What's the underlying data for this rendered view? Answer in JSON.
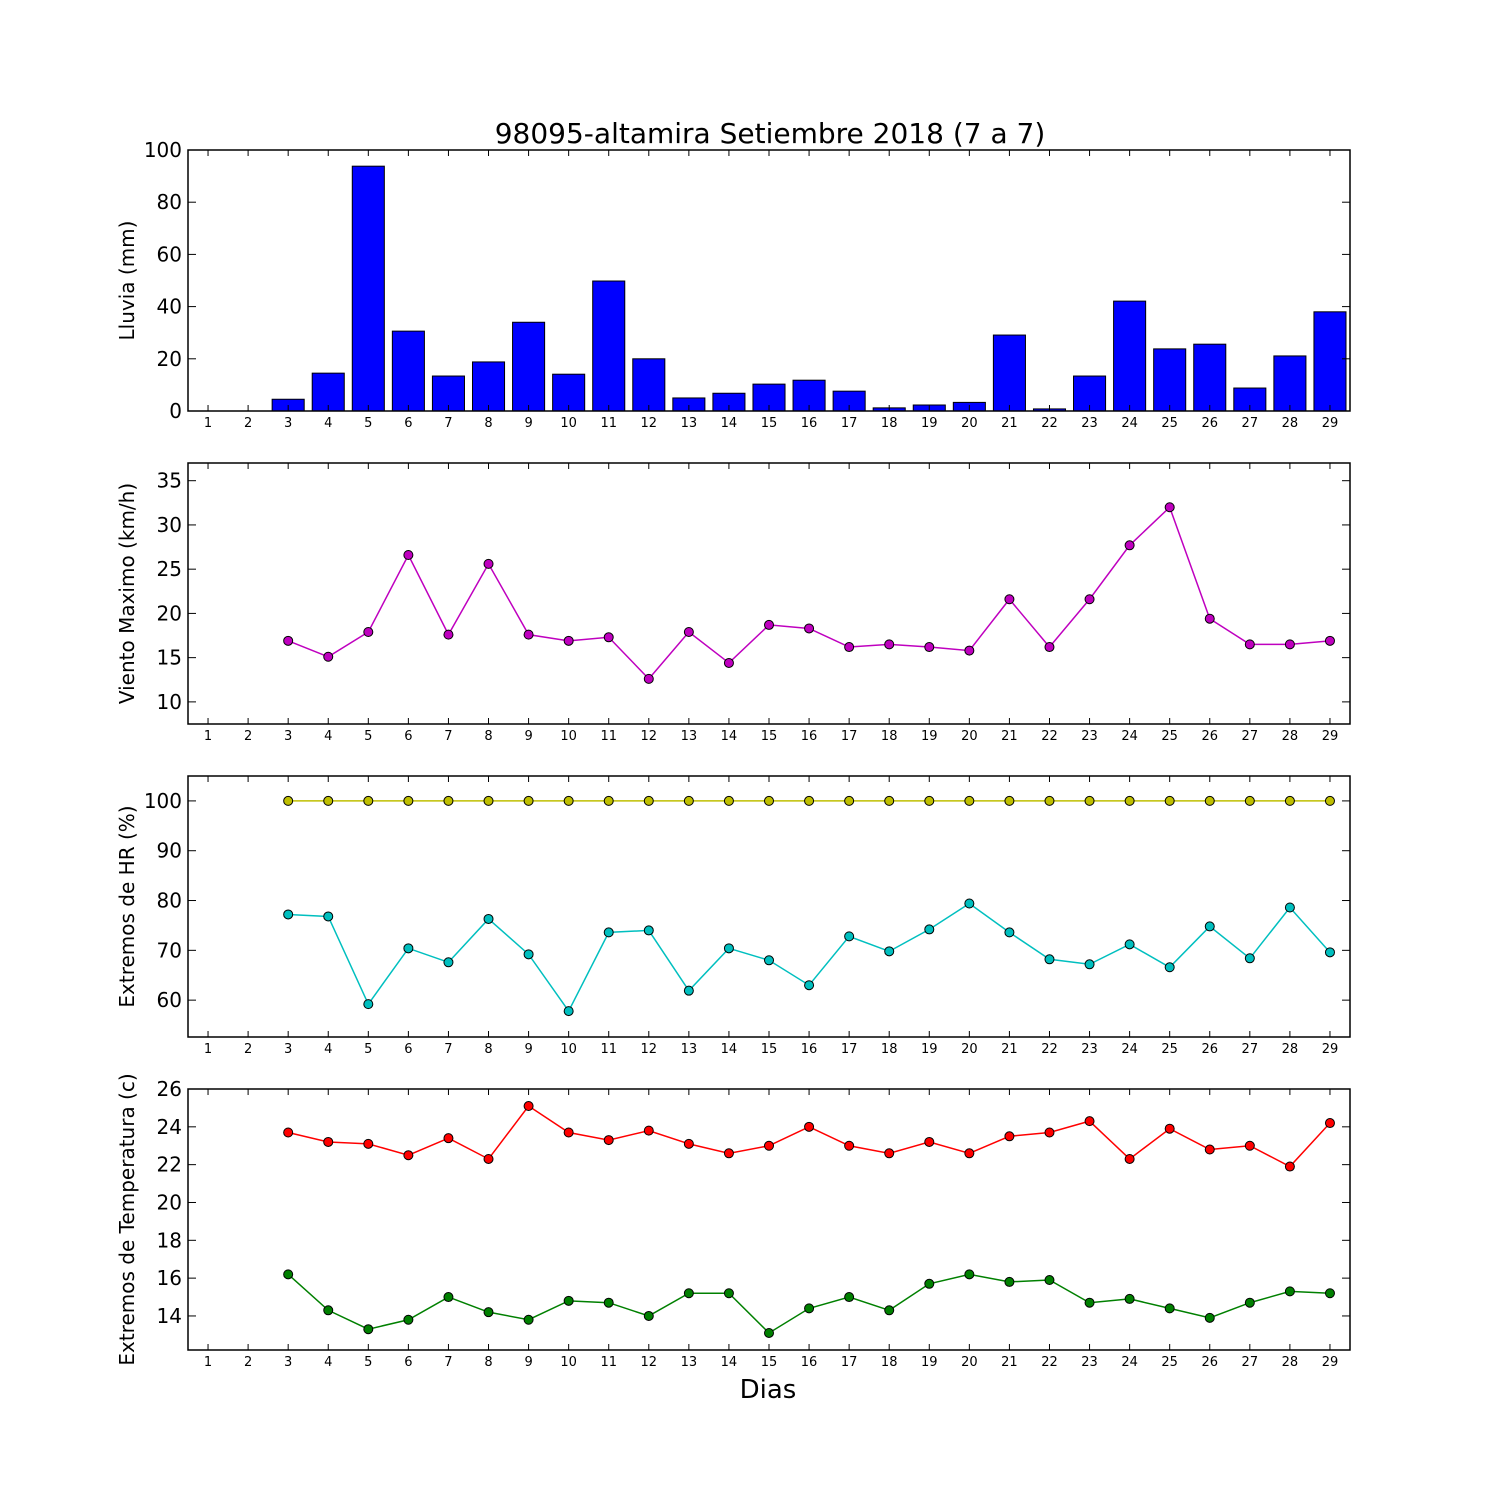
{
  "figure": {
    "title": "98095-altamira Setiembre 2018  (7 a 7)",
    "xlabel": "Dias",
    "colors": {
      "rain": "#0000ff",
      "wind": "#bf00bf",
      "hr_max": "#bfbf00",
      "hr_min": "#00bfbf",
      "t_max": "#ff0000",
      "t_min": "#008000"
    }
  },
  "chart_data": [
    {
      "type": "bar",
      "ylabel": "Lluvia (mm)",
      "ylim": [
        0,
        100
      ],
      "yticks": [
        0,
        20,
        40,
        60,
        80,
        100
      ],
      "xlim": [
        0.5,
        29.5
      ],
      "categories": [
        1,
        2,
        3,
        4,
        5,
        6,
        7,
        8,
        9,
        10,
        11,
        12,
        13,
        14,
        15,
        16,
        17,
        18,
        19,
        20,
        21,
        22,
        23,
        24,
        25,
        26,
        27,
        28,
        29
      ],
      "series": [
        {
          "values": [
            null,
            null,
            4.5,
            14.5,
            93.8,
            30.6,
            13.4,
            18.8,
            34.0,
            14.1,
            49.8,
            20.0,
            5.0,
            6.8,
            10.3,
            11.8,
            7.6,
            1.2,
            2.3,
            3.3,
            29.1,
            0.8,
            13.4,
            42.1,
            23.8,
            25.6,
            8.8,
            21.1,
            38.0
          ]
        }
      ],
      "grid": false
    },
    {
      "type": "line",
      "ylabel": "Viento Maximo (km/h)",
      "ylim": [
        7.5,
        37
      ],
      "yticks": [
        10,
        15,
        20,
        25,
        30,
        35
      ],
      "xlim": [
        0.5,
        29.5
      ],
      "x": [
        1,
        2,
        3,
        4,
        5,
        6,
        7,
        8,
        9,
        10,
        11,
        12,
        13,
        14,
        15,
        16,
        17,
        18,
        19,
        20,
        21,
        22,
        23,
        24,
        25,
        26,
        27,
        28,
        29
      ],
      "series": [
        {
          "values": [
            null,
            null,
            16.9,
            15.1,
            17.9,
            26.6,
            17.6,
            25.6,
            17.6,
            16.9,
            17.3,
            12.6,
            17.9,
            14.4,
            18.7,
            18.3,
            16.2,
            16.5,
            16.2,
            15.8,
            21.6,
            16.2,
            21.6,
            27.7,
            32.0,
            19.4,
            16.5,
            16.5,
            16.9
          ]
        }
      ],
      "grid": false
    },
    {
      "type": "line",
      "ylabel": "Extremos de HR (%)",
      "ylim": [
        52.6,
        105
      ],
      "yticks": [
        60,
        70,
        80,
        90,
        100
      ],
      "xlim": [
        0.5,
        29.5
      ],
      "x": [
        1,
        2,
        3,
        4,
        5,
        6,
        7,
        8,
        9,
        10,
        11,
        12,
        13,
        14,
        15,
        16,
        17,
        18,
        19,
        20,
        21,
        22,
        23,
        24,
        25,
        26,
        27,
        28,
        29
      ],
      "series": [
        {
          "values": [
            null,
            null,
            100,
            100,
            100,
            100,
            100,
            100,
            100,
            100,
            100,
            100,
            100,
            100,
            100,
            100,
            100,
            100,
            100,
            100,
            100,
            100,
            100,
            100,
            100,
            100,
            100,
            100,
            100
          ]
        },
        {
          "values": [
            null,
            null,
            77.2,
            76.8,
            59.2,
            70.4,
            67.6,
            76.3,
            69.2,
            57.8,
            73.6,
            74.0,
            61.9,
            70.4,
            68.0,
            63.0,
            72.8,
            69.8,
            74.2,
            79.4,
            73.6,
            68.2,
            67.2,
            71.2,
            66.6,
            74.8,
            68.4,
            78.6,
            69.6
          ]
        }
      ],
      "grid": false
    },
    {
      "type": "line",
      "ylabel": "Extremos de Temperatura (c)",
      "ylim": [
        12.2,
        26
      ],
      "yticks": [
        14,
        16,
        18,
        20,
        22,
        24,
        26
      ],
      "xlim": [
        0.5,
        29.5
      ],
      "x": [
        1,
        2,
        3,
        4,
        5,
        6,
        7,
        8,
        9,
        10,
        11,
        12,
        13,
        14,
        15,
        16,
        17,
        18,
        19,
        20,
        21,
        22,
        23,
        24,
        25,
        26,
        27,
        28,
        29
      ],
      "series": [
        {
          "values": [
            null,
            null,
            23.7,
            23.2,
            23.1,
            22.5,
            23.4,
            22.3,
            25.1,
            23.7,
            23.3,
            23.8,
            23.1,
            22.6,
            23.0,
            24.0,
            23.0,
            22.6,
            23.2,
            22.6,
            23.5,
            23.7,
            24.3,
            22.3,
            23.9,
            22.8,
            23.0,
            21.9,
            24.2
          ]
        },
        {
          "values": [
            null,
            null,
            16.2,
            14.3,
            13.3,
            13.8,
            15.0,
            14.2,
            13.8,
            14.8,
            14.7,
            14.0,
            15.2,
            15.2,
            13.1,
            14.4,
            15.0,
            14.3,
            15.7,
            16.2,
            15.8,
            15.9,
            14.7,
            14.9,
            14.4,
            13.9,
            14.7,
            15.3,
            15.2
          ]
        }
      ],
      "grid": false
    }
  ]
}
